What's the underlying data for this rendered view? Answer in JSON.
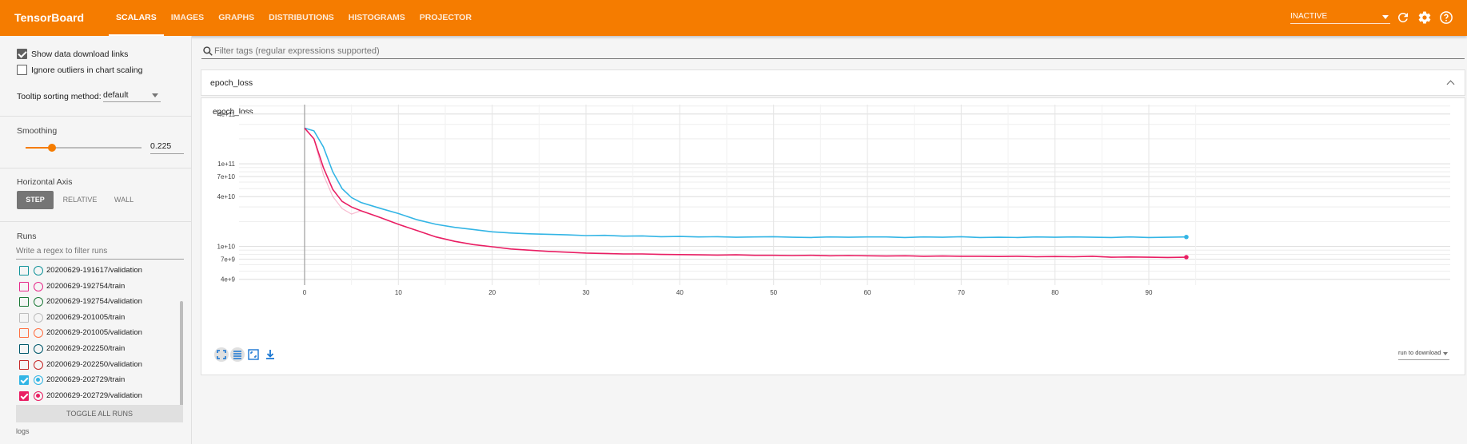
{
  "app": {
    "title": "TensorBoard"
  },
  "nav": {
    "tabs": [
      {
        "label": "SCALARS",
        "active": true
      },
      {
        "label": "IMAGES"
      },
      {
        "label": "GRAPHS"
      },
      {
        "label": "DISTRIBUTIONS"
      },
      {
        "label": "HISTOGRAMS"
      },
      {
        "label": "PROJECTOR"
      }
    ],
    "status_select": "INACTIVE",
    "icons": [
      "refresh-icon",
      "gear-icon",
      "help-icon"
    ]
  },
  "sidebar": {
    "show_download_links": {
      "label": "Show data download links",
      "checked": true
    },
    "ignore_outliers": {
      "label": "Ignore outliers in chart scaling",
      "checked": false
    },
    "tooltip_sort": {
      "label": "Tooltip sorting method:",
      "value": "default"
    },
    "smoothing": {
      "label": "Smoothing",
      "value": "0.225",
      "fraction": 0.225
    },
    "horizontal_axis": {
      "label": "Horizontal Axis",
      "options": [
        "STEP",
        "RELATIVE",
        "WALL"
      ],
      "selected": "STEP"
    },
    "runs": {
      "label": "Runs",
      "filter_placeholder": "Write a regex to filter runs",
      "items": [
        {
          "name": "20200629-191617/validation",
          "color": "#12939a",
          "checked": false
        },
        {
          "name": "20200629-192754/train",
          "color": "#e7298a",
          "checked": false
        },
        {
          "name": "20200629-192754/validation",
          "color": "#1b7837",
          "checked": false
        },
        {
          "name": "20200629-201005/train",
          "color": "#bdbdbd",
          "checked": false
        },
        {
          "name": "20200629-201005/validation",
          "color": "#ff7043",
          "checked": false
        },
        {
          "name": "20200629-202250/train",
          "color": "#00586b",
          "checked": false
        },
        {
          "name": "20200629-202250/validation",
          "color": "#c62828",
          "checked": false
        },
        {
          "name": "20200629-202729/train",
          "color": "#33b5e5",
          "checked": true
        },
        {
          "name": "20200629-202729/validation",
          "color": "#e91e63",
          "checked": true
        }
      ],
      "toggle_all": "TOGGLE ALL RUNS",
      "logdir": "logs"
    }
  },
  "main": {
    "filter_placeholder": "Filter tags (regular expressions supported)",
    "card_title": "epoch_loss",
    "run_to_download": "run to download"
  },
  "chart_data": {
    "type": "line",
    "title": "epoch_loss",
    "xlabel": "",
    "ylabel": "",
    "yscale": "log",
    "xlim": [
      0,
      94
    ],
    "ylim": [
      3400000000.0,
      520000000000.0
    ],
    "x_ticks": [
      0,
      10,
      20,
      30,
      40,
      50,
      60,
      70,
      80,
      90
    ],
    "y_ticks": [
      {
        "value": 400000000000.0,
        "label": "4e+11"
      },
      {
        "value": 100000000000.0,
        "label": "1e+11"
      },
      {
        "value": 70000000000.0,
        "label": "7e+10"
      },
      {
        "value": 40000000000.0,
        "label": "4e+10"
      },
      {
        "value": 10000000000.0,
        "label": "1e+10"
      },
      {
        "value": 7000000000.0,
        "label": "7e+9"
      },
      {
        "value": 4000000000.0,
        "label": "4e+9"
      }
    ],
    "grid": true,
    "series": [
      {
        "name": "20200629-202729/train",
        "color": "#33b5e5",
        "x": [
          0,
          1,
          2,
          3,
          4,
          5,
          6,
          8,
          10,
          12,
          14,
          16,
          18,
          20,
          22,
          24,
          26,
          28,
          30,
          32,
          34,
          36,
          38,
          40,
          42,
          44,
          46,
          48,
          50,
          52,
          54,
          56,
          58,
          60,
          62,
          64,
          66,
          68,
          70,
          72,
          74,
          76,
          78,
          80,
          82,
          84,
          86,
          88,
          90,
          92,
          94
        ],
        "values": [
          270000000000.0,
          250000000000.0,
          160000000000.0,
          80000000000.0,
          50000000000.0,
          39000000000.0,
          34000000000.0,
          29000000000.0,
          25000000000.0,
          21000000000.0,
          18500000000.0,
          17000000000.0,
          16000000000.0,
          15000000000.0,
          14500000000.0,
          14200000000.0,
          14000000000.0,
          13800000000.0,
          13500000000.0,
          13600000000.0,
          13300000000.0,
          13400000000.0,
          13100000000.0,
          13200000000.0,
          13000000000.0,
          13100000000.0,
          12900000000.0,
          13000000000.0,
          13100000000.0,
          12900000000.0,
          12800000000.0,
          13000000000.0,
          12900000000.0,
          13000000000.0,
          13000000000.0,
          12800000000.0,
          13000000000.0,
          12900000000.0,
          13100000000.0,
          12800000000.0,
          12900000000.0,
          12800000000.0,
          13000000000.0,
          12900000000.0,
          13000000000.0,
          12900000000.0,
          12800000000.0,
          13000000000.0,
          12800000000.0,
          12900000000.0,
          13000000000.0
        ]
      },
      {
        "name": "20200629-202729/validation",
        "color": "#e91e63",
        "x": [
          0,
          1,
          2,
          3,
          4,
          5,
          6,
          8,
          10,
          12,
          14,
          16,
          18,
          20,
          22,
          24,
          26,
          28,
          30,
          32,
          34,
          36,
          38,
          40,
          42,
          44,
          46,
          48,
          50,
          52,
          54,
          56,
          58,
          60,
          62,
          64,
          66,
          68,
          70,
          72,
          74,
          76,
          78,
          80,
          82,
          84,
          86,
          88,
          90,
          92,
          94
        ],
        "values": [
          270000000000.0,
          200000000000.0,
          90000000000.0,
          49000000000.0,
          35000000000.0,
          30000000000.0,
          27000000000.0,
          22500000000.0,
          18500000000.0,
          15500000000.0,
          13000000000.0,
          11500000000.0,
          10500000000.0,
          9900000000.0,
          9300000000.0,
          9000000000.0,
          8700000000.0,
          8500000000.0,
          8300000000.0,
          8200000000.0,
          8100000000.0,
          8100000000.0,
          8000000000.0,
          7950000000.0,
          7900000000.0,
          7850000000.0,
          7900000000.0,
          7800000000.0,
          7800000000.0,
          7750000000.0,
          7800000000.0,
          7700000000.0,
          7750000000.0,
          7700000000.0,
          7650000000.0,
          7700000000.0,
          7600000000.0,
          7650000000.0,
          7600000000.0,
          7600000000.0,
          7550000000.0,
          7600000000.0,
          7500000000.0,
          7550000000.0,
          7500000000.0,
          7600000000.0,
          7400000000.0,
          7450000000.0,
          7400000000.0,
          7350000000.0,
          7400000000.0
        ]
      }
    ]
  }
}
